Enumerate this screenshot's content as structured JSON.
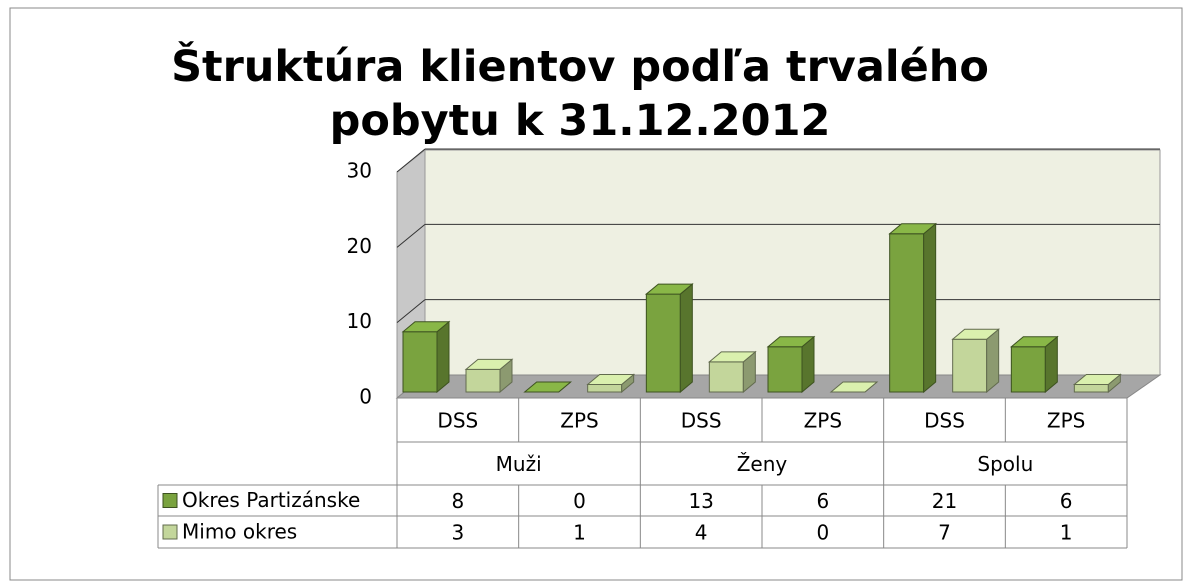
{
  "chart_data": {
    "type": "bar3d",
    "title": "Štruktúra klientov podľa trvalého pobytu k 31.12.2012",
    "categories": [
      "DSS",
      "ZPS",
      "DSS",
      "ZPS",
      "DSS",
      "ZPS"
    ],
    "groups": [
      "Muži",
      "Ženy",
      "Spolu"
    ],
    "series": [
      {
        "name": "Okres Partizánske",
        "color": "#7aa33f",
        "values": [
          8,
          0,
          13,
          6,
          21,
          6
        ]
      },
      {
        "name": "Mimo okres",
        "color": "#c3d69b",
        "values": [
          3,
          1,
          4,
          0,
          7,
          1
        ]
      }
    ],
    "ylim": [
      0,
      30
    ],
    "yticks": [
      0,
      10,
      20,
      30
    ],
    "grid": true,
    "data_table": true
  }
}
